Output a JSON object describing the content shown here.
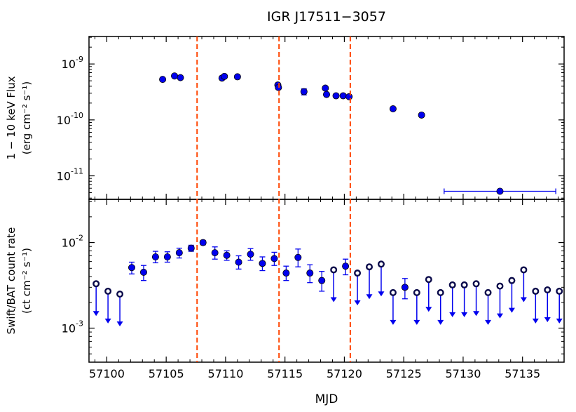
{
  "chart_data": [
    {
      "type": "scatter",
      "title": "IGR J17511−3057",
      "ylabel_line1": "1 − 10 keV Flux",
      "ylabel_line2": "(erg cm⁻² s⁻¹)",
      "yscale": "log",
      "xlim": [
        57098.5,
        57138.5
      ],
      "ylim": [
        3.8e-12,
        3.1e-09
      ],
      "y_ticks": [
        {
          "value": 1e-09,
          "base": "10",
          "exp": "-9"
        },
        {
          "value": 1e-10,
          "base": "10",
          "exp": "-10"
        },
        {
          "value": 1e-11,
          "base": "10",
          "exp": "-11"
        }
      ],
      "marker_color": "#0000ee",
      "series": [
        {
          "points": [
            {
              "x": 57104.7,
              "y": 5.3e-10
            },
            {
              "x": 57105.7,
              "y": 6.1e-10
            },
            {
              "x": 57106.2,
              "y": 5.7e-10
            },
            {
              "x": 57109.7,
              "y": 5.6e-10
            },
            {
              "x": 57109.9,
              "y": 6e-10
            },
            {
              "x": 57111.0,
              "y": 5.9e-10
            },
            {
              "x": 57114.4,
              "y": 4.2e-10
            },
            {
              "x": 57114.45,
              "y": 3.8e-10
            },
            {
              "x": 57116.6,
              "y": 3.2e-10,
              "yerr": [
                2.8e-10,
                3.6e-10
              ]
            },
            {
              "x": 57118.4,
              "y": 3.7e-10
            },
            {
              "x": 57118.5,
              "y": 2.85e-10
            },
            {
              "x": 57119.3,
              "y": 2.7e-10
            },
            {
              "x": 57119.9,
              "y": 2.7e-10
            },
            {
              "x": 57120.4,
              "y": 2.6e-10
            },
            {
              "x": 57124.1,
              "y": 1.58e-10
            },
            {
              "x": 57126.5,
              "y": 1.22e-10
            },
            {
              "x": 57133.1,
              "y": 5.3e-12,
              "xerr": [
                57128.4,
                57137.8
              ]
            }
          ]
        }
      ]
    },
    {
      "type": "scatter",
      "xlabel": "MJD",
      "ylabel_line1": "Swift/BAT count rate",
      "ylabel_line2": "(ct cm⁻² s⁻¹)",
      "yscale": "log",
      "xlim": [
        57098.5,
        57138.5
      ],
      "ylim": [
        0.0004,
        0.032
      ],
      "y_ticks": [
        {
          "value": 0.01,
          "base": "10",
          "exp": "-2"
        },
        {
          "value": 0.001,
          "base": "10",
          "exp": "-3"
        }
      ],
      "x_ticks": [
        57100,
        57105,
        57110,
        57115,
        57120,
        57125,
        57130,
        57135
      ],
      "marker_color": "#0000ee",
      "detections": [
        {
          "x": 57102.1,
          "y": 0.0051,
          "lo": 0.0043,
          "hi": 0.0059
        },
        {
          "x": 57103.1,
          "y": 0.0045,
          "lo": 0.0036,
          "hi": 0.0054
        },
        {
          "x": 57104.1,
          "y": 0.0068,
          "lo": 0.0058,
          "hi": 0.0079
        },
        {
          "x": 57105.1,
          "y": 0.0068,
          "lo": 0.0059,
          "hi": 0.0078
        },
        {
          "x": 57106.1,
          "y": 0.0076,
          "lo": 0.0066,
          "hi": 0.0086
        },
        {
          "x": 57107.1,
          "y": 0.0086,
          "lo": 0.0079,
          "hi": 0.0093
        },
        {
          "x": 57108.1,
          "y": 0.01,
          "lo": 0.0094,
          "hi": 0.0106
        },
        {
          "x": 57109.1,
          "y": 0.0076,
          "lo": 0.0064,
          "hi": 0.0089
        },
        {
          "x": 57110.1,
          "y": 0.0071,
          "lo": 0.0062,
          "hi": 0.008
        },
        {
          "x": 57111.1,
          "y": 0.0059,
          "lo": 0.0049,
          "hi": 0.007
        },
        {
          "x": 57112.1,
          "y": 0.0073,
          "lo": 0.0062,
          "hi": 0.0085
        },
        {
          "x": 57113.1,
          "y": 0.0057,
          "lo": 0.0047,
          "hi": 0.0068
        },
        {
          "x": 57114.1,
          "y": 0.0065,
          "lo": 0.0054,
          "hi": 0.0077
        },
        {
          "x": 57115.1,
          "y": 0.0044,
          "lo": 0.0036,
          "hi": 0.0053
        },
        {
          "x": 57116.1,
          "y": 0.0067,
          "lo": 0.0052,
          "hi": 0.0084
        },
        {
          "x": 57117.1,
          "y": 0.0044,
          "lo": 0.0034,
          "hi": 0.0055
        },
        {
          "x": 57118.1,
          "y": 0.0036,
          "lo": 0.0027,
          "hi": 0.0046
        },
        {
          "x": 57120.1,
          "y": 0.0053,
          "lo": 0.0042,
          "hi": 0.0064
        },
        {
          "x": 57125.1,
          "y": 0.003,
          "lo": 0.0022,
          "hi": 0.0038
        }
      ],
      "upper_limits": [
        {
          "x": 57099.1,
          "y": 0.0033
        },
        {
          "x": 57100.1,
          "y": 0.0027
        },
        {
          "x": 57101.1,
          "y": 0.0025
        },
        {
          "x": 57119.1,
          "y": 0.0048
        },
        {
          "x": 57121.1,
          "y": 0.0044
        },
        {
          "x": 57122.1,
          "y": 0.0052
        },
        {
          "x": 57123.1,
          "y": 0.0056
        },
        {
          "x": 57124.1,
          "y": 0.0026
        },
        {
          "x": 57126.1,
          "y": 0.0026
        },
        {
          "x": 57127.1,
          "y": 0.0037
        },
        {
          "x": 57128.1,
          "y": 0.0026
        },
        {
          "x": 57129.1,
          "y": 0.0032
        },
        {
          "x": 57130.1,
          "y": 0.0032
        },
        {
          "x": 57131.1,
          "y": 0.0033
        },
        {
          "x": 57132.1,
          "y": 0.0026
        },
        {
          "x": 57133.1,
          "y": 0.0031
        },
        {
          "x": 57134.1,
          "y": 0.0036
        },
        {
          "x": 57135.1,
          "y": 0.0048
        },
        {
          "x": 57136.1,
          "y": 0.0027
        },
        {
          "x": 57137.1,
          "y": 0.0028
        },
        {
          "x": 57138.1,
          "y": 0.0027
        }
      ]
    }
  ],
  "vertical_lines": {
    "color": "#ff4500",
    "x": [
      57107.6,
      57114.5,
      57120.5
    ]
  }
}
